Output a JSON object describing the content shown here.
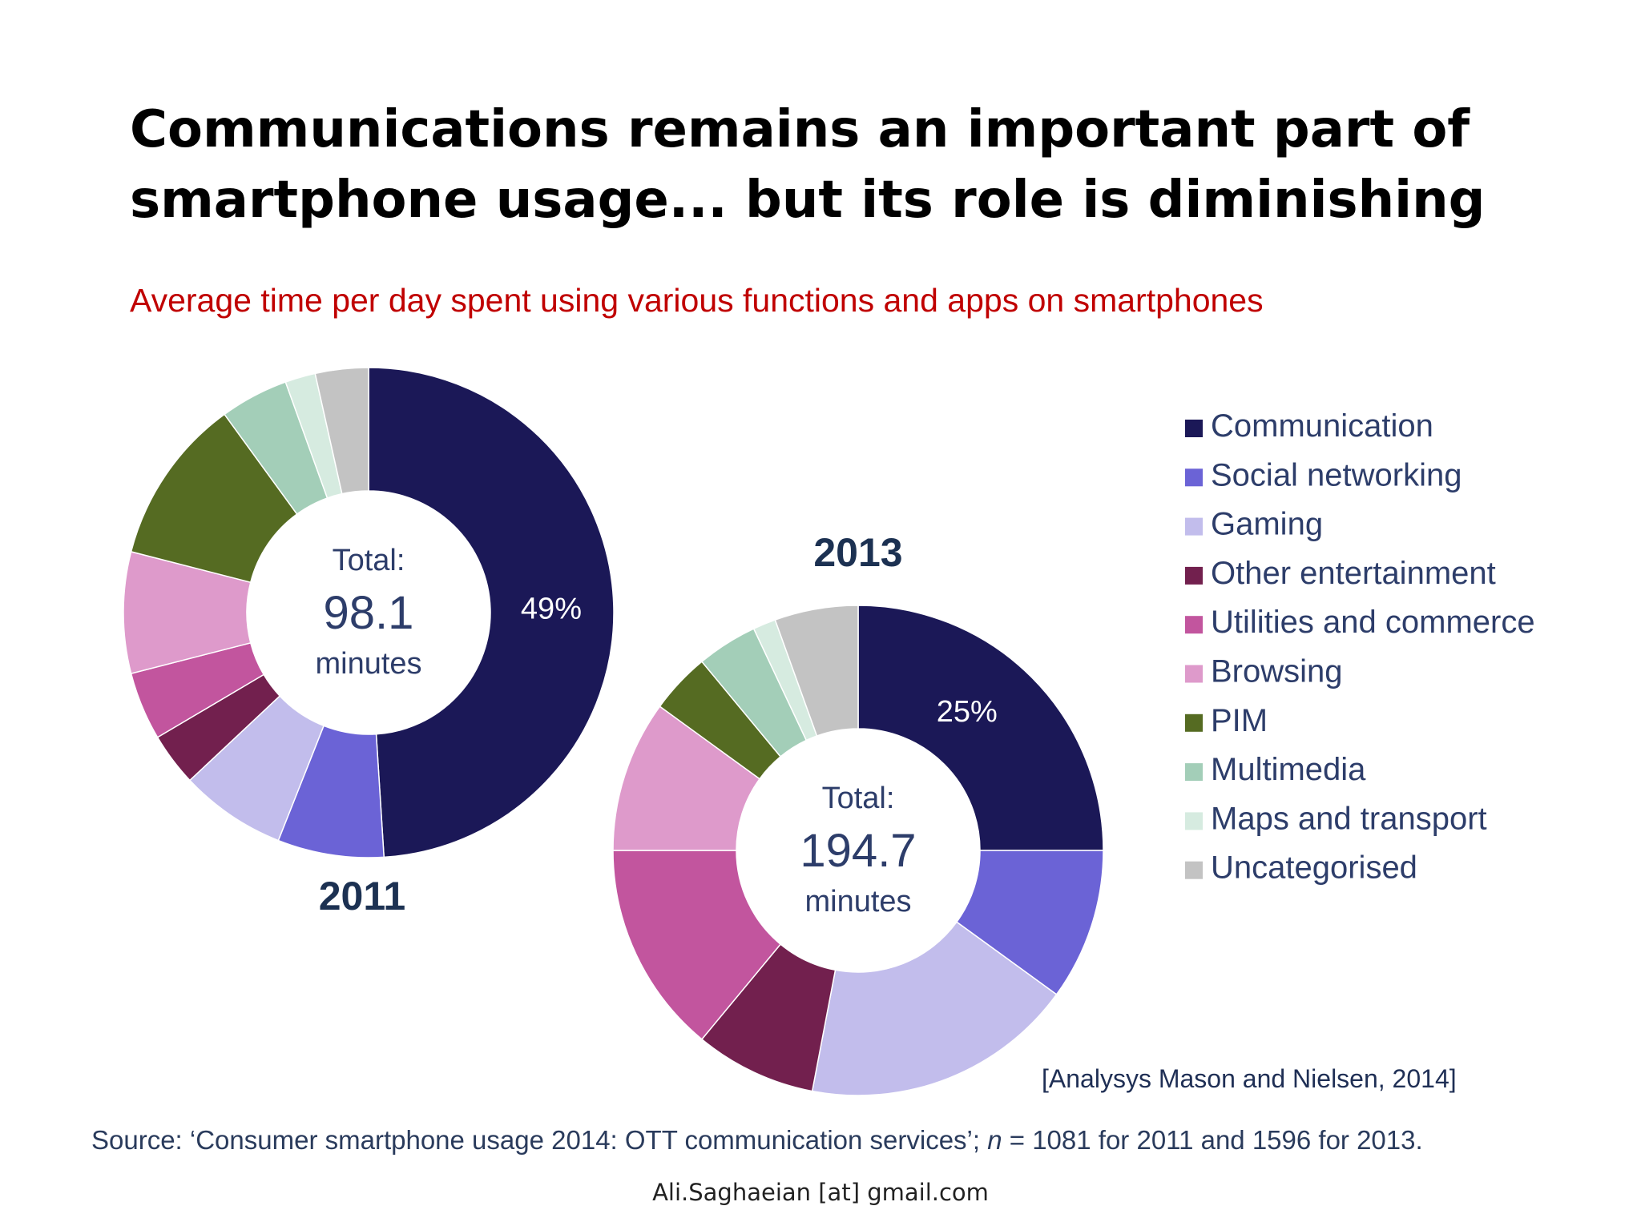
{
  "slide": {
    "title_line1": "Communications remains an important part of",
    "title_line2": "smartphone usage... but its role is diminishing",
    "subtitle": "Average time per day spent using various functions and apps on smartphones",
    "citation": "[Analysys Mason and Nielsen, 2014]",
    "source_prefix": "Source: ‘Consumer smartphone usage 2014: OTT communication services’; ",
    "source_n": "n",
    "source_suffix": " = 1081 for 2011 and 1596 for 2013.",
    "footer": "Ali.Saghaeian [at] gmail.com"
  },
  "chart_data": {
    "type": "pie",
    "legend_position": "right",
    "legend": [
      {
        "label": "Communication",
        "color": "#1b1857"
      },
      {
        "label": "Social networking",
        "color": "#6b63d6"
      },
      {
        "label": "Gaming",
        "color": "#c2bdec"
      },
      {
        "label": "Other entertainment",
        "color": "#72204e"
      },
      {
        "label": "Utilities and commerce",
        "color": "#c2559e"
      },
      {
        "label": "Browsing",
        "color": "#de9acb"
      },
      {
        "label": "PIM",
        "color": "#556b22"
      },
      {
        "label": "Multimedia",
        "color": "#a3ceb8"
      },
      {
        "label": "Maps and transport",
        "color": "#d6ebe0"
      },
      {
        "label": "Uncategorised",
        "color": "#c3c3c3"
      }
    ],
    "charts": [
      {
        "year": "2011",
        "center_label": "Total:",
        "center_value": "98.1",
        "center_unit": "minutes",
        "highlight_label": "49%",
        "values": [
          49,
          7,
          7,
          3.5,
          4.5,
          8,
          11,
          4.5,
          2,
          3.5
        ]
      },
      {
        "year": "2013",
        "center_label": "Total:",
        "center_value": "194.7",
        "center_unit": "minutes",
        "highlight_label": "25%",
        "values": [
          25,
          10,
          18,
          8,
          14,
          10,
          4,
          4,
          1.5,
          5.5
        ]
      }
    ]
  }
}
